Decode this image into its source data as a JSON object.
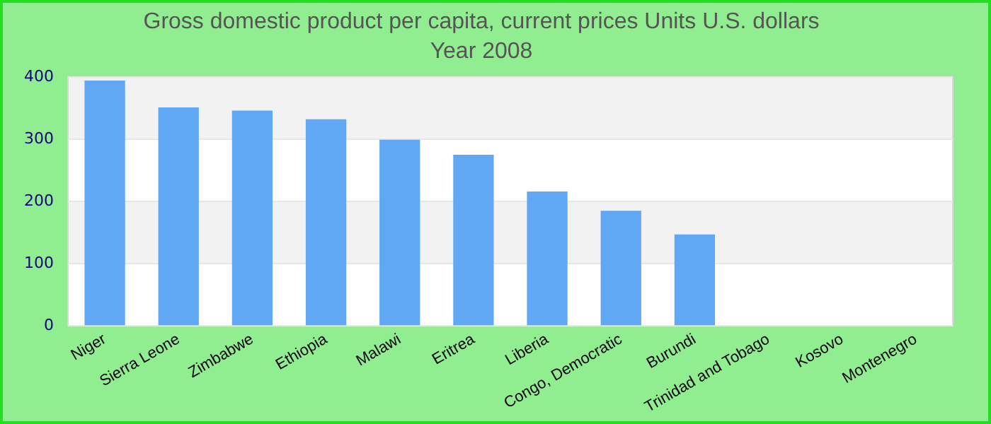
{
  "chart_data": {
    "type": "bar",
    "title": "Gross domestic product per capita, current prices Units U.S. dollars",
    "subtitle": "Year 2008",
    "categories": [
      "Niger",
      "Sierra Leone",
      "Zimbabwe",
      "Ethiopia",
      "Malawi",
      "Eritrea",
      "Liberia",
      "Congo, Democratic",
      "Burundi",
      "Trinidad and Tobago",
      "Kosovo",
      "Montenegro"
    ],
    "values": [
      394,
      351,
      346,
      332,
      299,
      275,
      216,
      185,
      147,
      null,
      null,
      null
    ],
    "color": "#61a8f4",
    "ylim": [
      0,
      400
    ],
    "yticks": [
      0,
      100,
      200,
      300,
      400
    ],
    "grid": "y",
    "legend": false
  }
}
